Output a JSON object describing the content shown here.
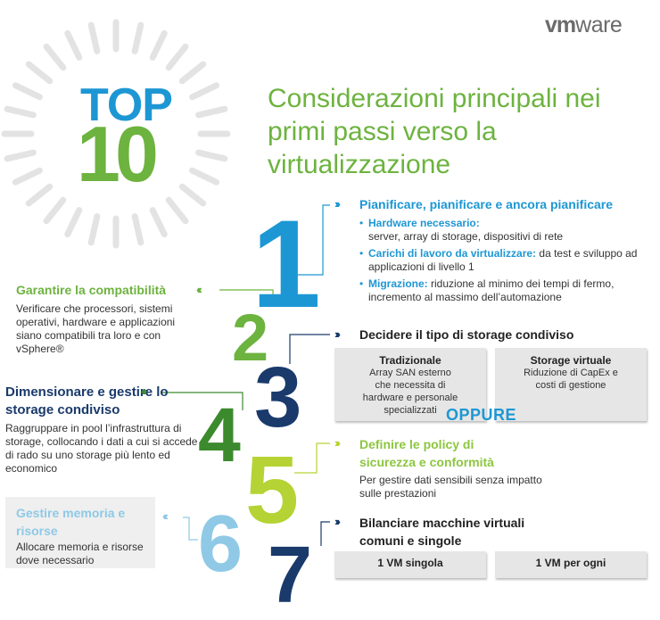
{
  "brand": {
    "logo_bold": "vm",
    "logo_light": "ware"
  },
  "hero": {
    "top": "TOP",
    "ten": "10",
    "title": "Considerazioni principali nei primi passi verso la virtualizzazione"
  },
  "numbers": [
    "1",
    "2",
    "3",
    "4",
    "5",
    "6",
    "7"
  ],
  "items": {
    "i1": {
      "heading": "Pianificare, pianificare e ancora pianificare",
      "bullets": [
        {
          "label": "Hardware necessario:",
          "text": "server, array di storage, dispositivi di rete"
        },
        {
          "label": "Carichi di lavoro da virtualizzare:",
          "text": "da test e sviluppo ad applicazioni di livello 1"
        },
        {
          "label": "Migrazione:",
          "text": "riduzione al minimo dei tempi di fermo, incremento al massimo dell’automazione"
        }
      ]
    },
    "i2": {
      "heading": "Garantire la compatibilità",
      "body": "Verificare che processori, sistemi operativi, hardware e applicazioni siano compatibili tra loro e con vSphere®"
    },
    "i3": {
      "heading": "Decidere il tipo di storage condiviso",
      "left_title": "Tradizionale",
      "left_body": "Array SAN esterno che necessita di hardware e personale specializzati",
      "or": "OPPURE",
      "right_title": "Storage virtuale",
      "right_body": "Riduzione di CapEx e costi di gestione"
    },
    "i4": {
      "heading": "Dimensionare e gestire lo storage condiviso",
      "body": "Raggruppare in pool l’infrastruttura di storage, collocando i dati a cui si accede di rado su uno storage più lento ed economico"
    },
    "i5": {
      "heading": "Definire le policy di sicurezza e conformità",
      "body": "Per gestire dati sensibili senza impatto sulle prestazioni"
    },
    "i6": {
      "heading": "Gestire memoria e risorse",
      "body": "Allocare memoria e risorse dove necessario"
    },
    "i7": {
      "heading": "Bilanciare macchine virtuali comuni e singole",
      "left_title": "1 VM singola",
      "right_title": "1 VM per ogni"
    }
  },
  "colors": {
    "blue": "#1d97d4",
    "green": "#6db33f",
    "dark_green": "#3c8a2e",
    "navy": "#1a3a6b",
    "lime": "#b5d334",
    "light_blue": "#8fc9e6"
  }
}
